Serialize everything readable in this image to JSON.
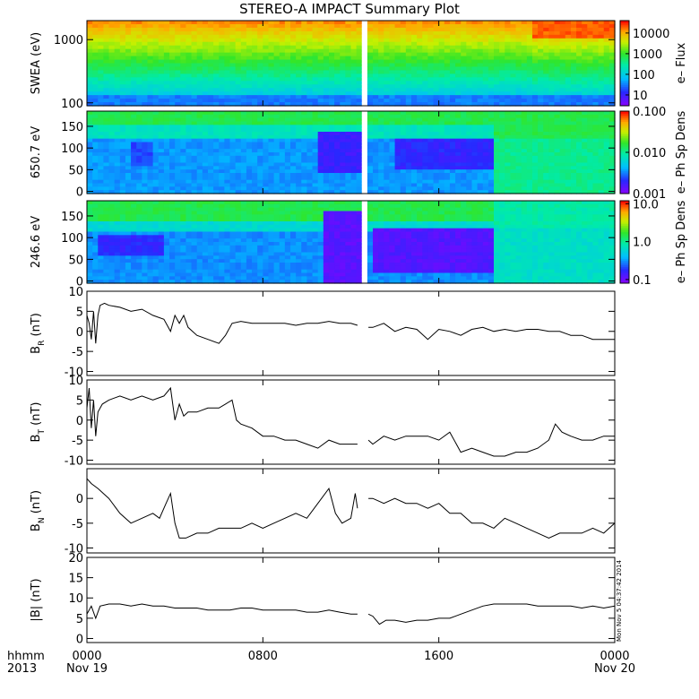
{
  "title": "STEREO-A IMPACT Summary Plot",
  "stamp": "Mon Nov  5 04:37:42 2014",
  "x_axis": {
    "row_label_1": "hhmm",
    "row_label_2": "2013",
    "ticks": [
      {
        "hours": 0,
        "time": "0000",
        "date": "Nov 19"
      },
      {
        "hours": 8,
        "time": "0800",
        "date": ""
      },
      {
        "hours": 16,
        "time": "1600",
        "date": ""
      },
      {
        "hours": 24,
        "time": "0000",
        "date": "Nov 20"
      }
    ],
    "range_hours": [
      0,
      24
    ]
  },
  "colors": {
    "line": "#000000",
    "frame": "#000000"
  },
  "chart_data": [
    {
      "type": "heatmap",
      "id": "swea",
      "ylabel": "SWEA (eV)",
      "ylog": true,
      "ylim": [
        90,
        2000
      ],
      "yticks": [
        {
          "v": 100,
          "label": "100"
        },
        {
          "v": 1000,
          "label": "1000"
        }
      ],
      "colorbar": {
        "label": "e– Flux",
        "log": true,
        "range": [
          3,
          40000
        ],
        "ticks": [
          {
            "v": 10,
            "label": "10"
          },
          {
            "v": 100,
            "label": "100"
          },
          {
            "v": 1000,
            "label": "1000"
          },
          {
            "v": 10000,
            "label": "10000"
          }
        ]
      },
      "colormap": "rainbow",
      "data_gap_hours": [
        12.4,
        12.8
      ]
    },
    {
      "type": "heatmap",
      "id": "pad650",
      "ylabel": "650.7 eV",
      "ylog": false,
      "ylim": [
        -5,
        185
      ],
      "yticks": [
        {
          "v": 0,
          "label": "0"
        },
        {
          "v": 50,
          "label": "50"
        },
        {
          "v": 100,
          "label": "100"
        },
        {
          "v": 150,
          "label": "150"
        }
      ],
      "colorbar": {
        "label": "e– Ph Sp Dens",
        "log": true,
        "range": [
          0.001,
          0.1
        ],
        "ticks": [
          {
            "v": 0.001,
            "label": "0.001"
          },
          {
            "v": 0.01,
            "label": "0.010"
          },
          {
            "v": 0.1,
            "label": "0.100"
          }
        ]
      },
      "colormap": "rainbow",
      "data_gap_hours": [
        12.4,
        12.8
      ]
    },
    {
      "type": "heatmap",
      "id": "pad246",
      "ylabel": "246.6 eV",
      "ylog": false,
      "ylim": [
        -5,
        185
      ],
      "yticks": [
        {
          "v": 0,
          "label": "0"
        },
        {
          "v": 50,
          "label": "50"
        },
        {
          "v": 100,
          "label": "100"
        },
        {
          "v": 150,
          "label": "150"
        }
      ],
      "colorbar": {
        "label": "e– Ph Sp Dens",
        "log": true,
        "range": [
          0.08,
          12
        ],
        "ticks": [
          {
            "v": 0.1,
            "label": "0.1"
          },
          {
            "v": 1,
            "label": "1.0"
          },
          {
            "v": 10,
            "label": "10.0"
          }
        ]
      },
      "colormap": "rainbow",
      "data_gap_hours": [
        12.4,
        12.8
      ]
    },
    {
      "type": "line",
      "id": "br",
      "ylabel": "B_R (nT)",
      "ylim": [
        -11,
        10
      ],
      "yticks": [
        {
          "v": -10,
          "label": "-10"
        },
        {
          "v": -5,
          "label": "-5"
        },
        {
          "v": 0,
          "label": "0"
        },
        {
          "v": 5,
          "label": "5"
        },
        {
          "v": 10,
          "label": "10"
        }
      ],
      "series": [
        {
          "x": [
            0,
            0.1,
            0.2,
            0.3,
            0.4,
            0.5,
            0.6,
            0.8,
            1,
            1.5,
            2,
            2.5,
            3,
            3.5,
            3.8,
            4,
            4.2,
            4.4,
            4.6,
            5,
            5.5,
            6,
            6.3,
            6.6,
            7,
            7.5,
            8,
            8.5,
            9,
            9.5,
            10,
            10.5,
            11,
            11.5,
            12,
            12.3,
            12.8,
            13,
            13.5,
            14,
            14.5,
            15,
            15.5,
            16,
            16.5,
            17,
            17.5,
            18,
            18.5,
            19,
            19.5,
            20,
            20.5,
            21,
            21.5,
            22,
            22.5,
            23,
            23.5,
            24
          ],
          "y": [
            4,
            2,
            -2,
            5,
            -3,
            4,
            6.5,
            7,
            6.5,
            6,
            5,
            5.5,
            4,
            3,
            0,
            4,
            2,
            4,
            1,
            -1,
            -2,
            -3,
            -1,
            2,
            2.5,
            2,
            2,
            2,
            2,
            1.5,
            2,
            2,
            2.5,
            2,
            2,
            1.5,
            1,
            1,
            2,
            0,
            1,
            0.5,
            -2,
            0.5,
            0,
            -1,
            0.5,
            1,
            0,
            0.5,
            0,
            0.5,
            0.5,
            0,
            0,
            -1,
            -1,
            -2,
            -2,
            -2
          ]
        }
      ]
    },
    {
      "type": "line",
      "id": "bt",
      "ylabel": "B_T (nT)",
      "ylim": [
        -11,
        10
      ],
      "yticks": [
        {
          "v": -10,
          "label": "-10"
        },
        {
          "v": -5,
          "label": "-5"
        },
        {
          "v": 0,
          "label": "0"
        },
        {
          "v": 5,
          "label": "5"
        },
        {
          "v": 10,
          "label": "10"
        }
      ],
      "series": [
        {
          "x": [
            0,
            0.1,
            0.2,
            0.3,
            0.4,
            0.5,
            0.7,
            1,
            1.5,
            2,
            2.5,
            3,
            3.5,
            3.8,
            4,
            4.2,
            4.4,
            4.6,
            5,
            5.5,
            6,
            6.3,
            6.6,
            6.8,
            7,
            7.5,
            8,
            8.5,
            9,
            9.5,
            10,
            10.5,
            11,
            11.5,
            12,
            12.3,
            12.8,
            13,
            13.5,
            14,
            14.5,
            15,
            15.5,
            16,
            16.5,
            17,
            17.5,
            18,
            18.5,
            19,
            19.5,
            20,
            20.5,
            21,
            21.3,
            21.6,
            22,
            22.5,
            23,
            23.5,
            24
          ],
          "y": [
            3,
            8,
            -2,
            5,
            -4,
            2,
            4,
            5,
            6,
            5,
            6,
            5,
            6,
            8,
            0,
            4,
            1,
            2,
            2,
            3,
            3,
            4,
            5,
            0,
            -1,
            -2,
            -4,
            -4,
            -5,
            -5,
            -6,
            -7,
            -5,
            -6,
            -6,
            -6,
            -5,
            -6,
            -4,
            -5,
            -4,
            -4,
            -4,
            -5,
            -3,
            -8,
            -7,
            -8,
            -9,
            -9,
            -8,
            -8,
            -7,
            -5,
            -1,
            -3,
            -4,
            -5,
            -5,
            -4,
            -4
          ]
        }
      ]
    },
    {
      "type": "line",
      "id": "bn",
      "ylabel": "B_N (nT)",
      "ylim": [
        -11,
        6
      ],
      "yticks": [
        {
          "v": -10,
          "label": "-10"
        },
        {
          "v": -5,
          "label": "-5"
        },
        {
          "v": 0,
          "label": "0"
        }
      ],
      "series": [
        {
          "x": [
            0,
            0.2,
            0.5,
            1,
            1.5,
            2,
            2.5,
            3,
            3.3,
            3.6,
            3.8,
            4,
            4.2,
            4.5,
            5,
            5.5,
            6,
            6.5,
            7,
            7.5,
            8,
            8.5,
            9,
            9.5,
            10,
            10.5,
            11,
            11.3,
            11.6,
            12,
            12.2,
            12.3,
            12.8,
            13,
            13.5,
            14,
            14.5,
            15,
            15.5,
            16,
            16.5,
            17,
            17.5,
            18,
            18.5,
            19,
            19.5,
            20,
            20.5,
            21,
            21.5,
            22,
            22.5,
            23,
            23.5,
            24
          ],
          "y": [
            4,
            3,
            2,
            0,
            -3,
            -5,
            -4,
            -3,
            -4,
            -1,
            1,
            -5,
            -8,
            -8,
            -7,
            -7,
            -6,
            -6,
            -6,
            -5,
            -6,
            -5,
            -4,
            -3,
            -4,
            -1,
            2,
            -3,
            -5,
            -4,
            1,
            -2,
            0,
            0,
            -1,
            0,
            -1,
            -1,
            -2,
            -1,
            -3,
            -3,
            -5,
            -5,
            -6,
            -4,
            -5,
            -6,
            -7,
            -8,
            -7,
            -7,
            -7,
            -6,
            -7,
            -5
          ]
        }
      ]
    },
    {
      "type": "line",
      "id": "bmag",
      "ylabel": "|B| (nT)",
      "ylim": [
        -1,
        20
      ],
      "yticks": [
        {
          "v": 0,
          "label": "0"
        },
        {
          "v": 5,
          "label": "5"
        },
        {
          "v": 10,
          "label": "10"
        },
        {
          "v": 15,
          "label": "15"
        },
        {
          "v": 20,
          "label": "20"
        }
      ],
      "series": [
        {
          "x": [
            0,
            0.2,
            0.4,
            0.6,
            1,
            1.5,
            2,
            2.5,
            3,
            3.5,
            4,
            4.5,
            5,
            5.5,
            6,
            6.5,
            7,
            7.5,
            8,
            8.5,
            9,
            9.5,
            10,
            10.5,
            11,
            11.5,
            12,
            12.3,
            12.8,
            13,
            13.3,
            13.6,
            14,
            14.5,
            15,
            15.5,
            16,
            16.5,
            17,
            17.5,
            18,
            18.5,
            19,
            19.5,
            20,
            20.5,
            21,
            21.5,
            22,
            22.5,
            23,
            23.5,
            24
          ],
          "y": [
            6,
            8,
            5,
            8,
            8.5,
            8.5,
            8,
            8.5,
            8,
            8,
            7.5,
            7.5,
            7.5,
            7,
            7,
            7,
            7.5,
            7.5,
            7,
            7,
            7,
            7,
            6.5,
            6.5,
            7,
            6.5,
            6,
            6,
            6,
            5.5,
            3.5,
            4.5,
            4.5,
            4,
            4.5,
            4.5,
            5,
            5,
            6,
            7,
            8,
            8.5,
            8.5,
            8.5,
            8.5,
            8,
            8,
            8,
            8,
            7.5,
            8,
            7.5,
            8
          ]
        }
      ]
    }
  ]
}
